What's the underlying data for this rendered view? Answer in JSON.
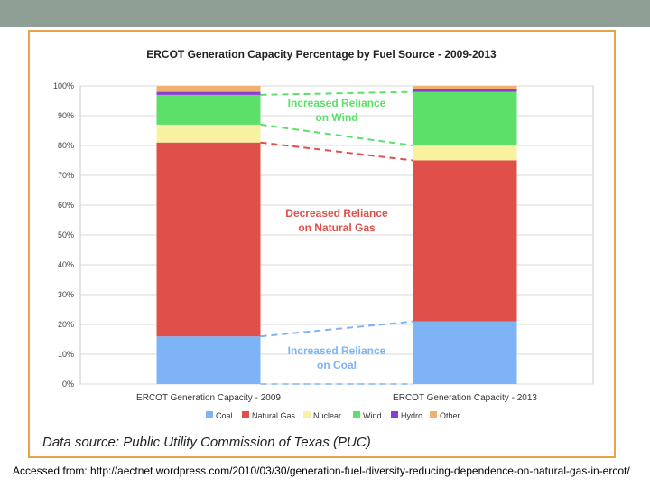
{
  "theme": {
    "topbar_color": "#909f95",
    "frame_color": "#e8a24a"
  },
  "chart_data": {
    "type": "bar",
    "stacked": true,
    "title": "ERCOT Generation Capacity Percentage by Fuel Source - 2009-2013",
    "categories": [
      "ERCOT Generation Capacity - 2009",
      "ERCOT Generation Capacity - 2013"
    ],
    "ylim": [
      0,
      100
    ],
    "yticks": [
      "0%",
      "10%",
      "20%",
      "30%",
      "40%",
      "50%",
      "60%",
      "70%",
      "80%",
      "90%",
      "100%"
    ],
    "grid": true,
    "legend_position": "bottom",
    "series": [
      {
        "name": "Coal",
        "color": "#7eb3f5",
        "values": [
          16,
          21
        ]
      },
      {
        "name": "Natural Gas",
        "color": "#e0504a",
        "values": [
          65,
          54
        ]
      },
      {
        "name": "Nuclear",
        "color": "#f8f2a0",
        "values": [
          6,
          5
        ]
      },
      {
        "name": "Wind",
        "color": "#5ce06a",
        "values": [
          10,
          18
        ]
      },
      {
        "name": "Hydro",
        "color": "#8a3cd4",
        "values": [
          1,
          1
        ]
      },
      {
        "name": "Other",
        "color": "#f0b070",
        "values": [
          2,
          1
        ]
      }
    ],
    "annotations": [
      {
        "lines": [
          "Increased Reliance",
          "on Wind"
        ],
        "color": "#5ce06a"
      },
      {
        "lines": [
          "Decreased Reliance",
          "on Natural Gas"
        ],
        "color": "#e0504a"
      },
      {
        "lines": [
          "Increased Reliance",
          "on Coal"
        ],
        "color": "#7eb3f5"
      }
    ],
    "source": "Data source: Public Utility Commission of Texas (PUC)"
  },
  "caption": "Accessed from: http://aectnet.wordpress.com/2010/03/30/generation-fuel-diversity-reducing-dependence-on-natural-gas-in-ercot/"
}
